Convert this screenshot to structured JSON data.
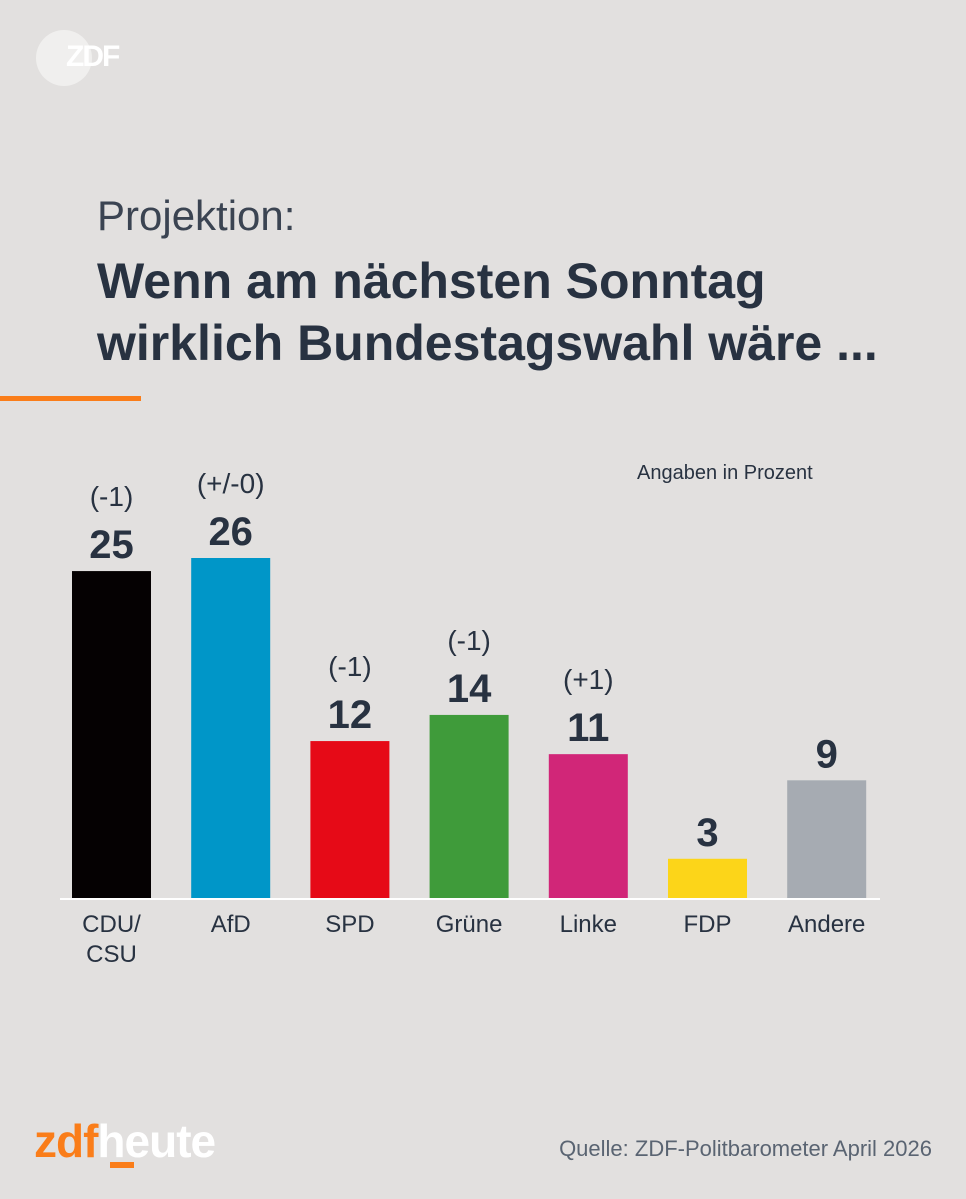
{
  "logo": {
    "text": "ZDF"
  },
  "kicker": "Projektion:",
  "headline": [
    "Wenn am nächsten Sonntag",
    "wirklich Bundestagswahl wäre ..."
  ],
  "unit_note": "Angaben in Prozent",
  "brand": {
    "part1": "zdf",
    "part2": "heute"
  },
  "source": "Quelle: ZDF-Politbarometer April 2026",
  "colors": {
    "background": "#e2e0df",
    "text": "#283241",
    "accent": "#fa7d19"
  },
  "chart_data": {
    "type": "bar",
    "title": "Wenn am nächsten Sonntag wirklich Bundestagswahl wäre ...",
    "ylabel": "Angaben in Prozent",
    "categories": [
      [
        "CDU/",
        "CSU"
      ],
      [
        "AfD"
      ],
      [
        "SPD"
      ],
      [
        "Grüne"
      ],
      [
        "Linke"
      ],
      [
        "FDP"
      ],
      [
        "Andere"
      ]
    ],
    "values": [
      25,
      26,
      12,
      14,
      11,
      3,
      9
    ],
    "changes": [
      "(-1)",
      "(+/-0)",
      "(-1)",
      "(-1)",
      "(+1)",
      "",
      ""
    ],
    "colors": [
      "#050102",
      "#0096c8",
      "#e60a17",
      "#3f9b3a",
      "#d12678",
      "#fcd519",
      "#a6abb2"
    ],
    "ylim": [
      0,
      26
    ],
    "grid": false
  }
}
